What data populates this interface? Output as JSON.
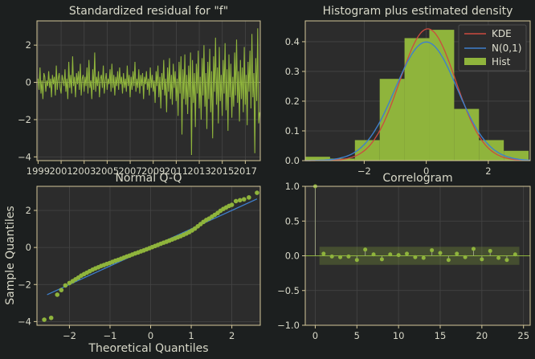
{
  "theme": {
    "background": "#1c1f1f",
    "panel": "#2c2c2c",
    "grid": "#454545",
    "spine": "#d4c79a",
    "text": "#d8d8c8",
    "green": "#8fb43c",
    "blue": "#3f7fcc",
    "red": "#cc4b3f"
  },
  "chart_data": [
    {
      "type": "line",
      "title": "Standardized residual for \"f\"",
      "xlim": [
        1998.9,
        2018.3
      ],
      "ylim": [
        -4.2,
        3.3
      ],
      "xticks": [
        "1999",
        "2001",
        "2003",
        "2005",
        "2007",
        "2009",
        "2011",
        "2013",
        "2015",
        "2017"
      ],
      "yticks": [
        "−4",
        "−2",
        "0",
        "2"
      ],
      "xtick_values": [
        1999,
        2001,
        2003,
        2005,
        2007,
        2009,
        2011,
        2013,
        2015,
        2017
      ],
      "ytick_values": [
        -4,
        -2,
        0,
        2
      ],
      "grid": true,
      "series": [
        {
          "x_start": 1999.0,
          "x_step": 0.0833,
          "values": [
            0.2,
            -0.4,
            0.8,
            -0.6,
            0.1,
            -0.9,
            0.5,
            0.3,
            -0.5,
            0.1,
            -0.2,
            0.6,
            -0.3,
            0.2,
            -0.8,
            0.4,
            -0.1,
            0.3,
            -0.7,
            0.9,
            -0.4,
            0.2,
            0.5,
            -0.3,
            -0.6,
            0.4,
            0.1,
            -0.2,
            0.7,
            -0.5,
            0.2,
            -0.9,
            1.1,
            -0.3,
            0.4,
            -0.6,
            1.4,
            -0.2,
            0.3,
            -0.8,
            0.5,
            -0.1,
            0.6,
            -0.4,
            1.0,
            -0.7,
            0.2,
            0.4,
            -0.5,
            0.3,
            -0.2,
            0.8,
            -0.6,
            1.2,
            -0.3,
            0.1,
            -0.9,
            0.7,
            -0.4,
            1.6,
            -0.5,
            0.3,
            -0.2,
            0.6,
            -0.8,
            0.2,
            0.4,
            -0.3,
            0.9,
            -0.6,
            0.1,
            0.5,
            -0.4,
            0.2,
            -0.1,
            0.7,
            -0.5,
            1.0,
            -0.3,
            0.4,
            -0.7,
            0.3,
            -0.2,
            0.6,
            -0.4,
            0.8,
            -0.1,
            0.3,
            -0.6,
            0.5,
            -0.3,
            0.2,
            -0.5,
            0.9,
            -0.2,
            0.4,
            -0.8,
            0.3,
            -0.4,
            0.6,
            -0.2,
            1.1,
            -0.5,
            0.2,
            -0.3,
            0.7,
            -0.6,
            0.4,
            -0.2,
            0.5,
            -0.9,
            0.3,
            -0.1,
            0.6,
            -0.4,
            0.2,
            -0.7,
            0.8,
            -0.3,
            0.4,
            -0.5,
            0.1,
            -1.1,
            0.6,
            -0.2,
            0.9,
            -0.8,
            0.3,
            -1.4,
            0.5,
            -0.4,
            1.2,
            -0.7,
            0.2,
            -1.6,
            0.8,
            -0.5,
            1.3,
            -0.9,
            0.4,
            -1.2,
            1.0,
            -0.3,
            0.6,
            -1.0,
            0.2,
            -1.8,
            1.1,
            -0.6,
            1.4,
            -2.8,
            0.7,
            -0.9,
            1.5,
            -1.2,
            0.4,
            -1.7,
            0.9,
            -0.8,
            1.6,
            -3.9,
            1.2,
            -1.1,
            0.5,
            -2.4,
            1.0,
            -0.6,
            1.7,
            -1.4,
            0.3,
            -2.0,
            1.3,
            -0.7,
            2.0,
            -1.3,
            0.5,
            -2.5,
            1.1,
            -0.9,
            1.8,
            -1.6,
            0.6,
            -3.0,
            1.4,
            -0.5,
            2.4,
            -1.2,
            0.8,
            -2.2,
            1.9,
            -1.0,
            0.4,
            -1.8,
            1.2,
            -0.6,
            2.1,
            -1.5,
            0.7,
            -2.6,
            1.5,
            -0.8,
            1.0,
            -1.9,
            0.3,
            -1.3,
            1.6,
            -0.7,
            2.3,
            -1.1,
            0.6,
            -2.1,
            1.2,
            -0.9,
            0.8,
            -1.6,
            1.9,
            -1.2,
            0.4,
            -2.3,
            1.1,
            -0.5,
            1.7,
            -1.4,
            2.6,
            -0.8,
            0.5,
            -3.8,
            1.3,
            -1.0,
            2.9,
            -2.2,
            -1.6
          ]
        }
      ]
    },
    {
      "type": "bar",
      "title": "Histogram plus estimated density",
      "xlim": [
        -3.9,
        3.35
      ],
      "ylim": [
        0,
        0.47
      ],
      "xticks": [
        "−2",
        "0",
        "2"
      ],
      "xtick_values": [
        -2,
        0,
        2
      ],
      "yticks": [
        "0.0",
        "0.1",
        "0.2",
        "0.3",
        "0.4"
      ],
      "ytick_values": [
        0,
        0.1,
        0.2,
        0.3,
        0.4
      ],
      "grid": true,
      "legend_position": "top-right",
      "legend": [
        "KDE",
        "N(0,1)",
        "Hist"
      ],
      "histogram": {
        "bin_edges": [
          -3.9,
          -3.1,
          -2.3,
          -1.5,
          -0.7,
          0.1,
          0.9,
          1.7,
          2.5,
          3.3
        ],
        "heights": [
          0.013,
          0.007,
          0.069,
          0.275,
          0.412,
          0.44,
          0.174,
          0.069,
          0.033
        ]
      },
      "series": [
        {
          "name": "KDE",
          "kind": "kde",
          "mean": 0.05,
          "sd": 0.9
        },
        {
          "name": "N(0,1)",
          "kind": "normal",
          "mean": 0,
          "sd": 1
        }
      ]
    },
    {
      "type": "scatter",
      "title": "Normal Q-Q",
      "xlabel": "Theoretical Quantiles",
      "ylabel": "Sample Quantiles",
      "xlim": [
        -2.8,
        2.7
      ],
      "ylim": [
        -4.2,
        3.3
      ],
      "xticks": [
        "−2",
        "−1",
        "0",
        "1",
        "2"
      ],
      "xtick_values": [
        -2,
        -1,
        0,
        1,
        2
      ],
      "yticks": [
        "−4",
        "−2",
        "0",
        "2"
      ],
      "ytick_values": [
        -4,
        -2,
        0,
        2
      ],
      "grid": true,
      "reference_line": {
        "x": [
          -2.55,
          2.62
        ],
        "y": [
          -2.55,
          2.62
        ]
      },
      "points": {
        "x": [
          -2.62,
          -2.45,
          -2.3,
          -2.2,
          -2.1,
          -2.0,
          -1.92,
          -1.85,
          -1.78,
          -1.71,
          -1.64,
          -1.57,
          -1.5,
          -1.43,
          -1.36,
          -1.29,
          -1.22,
          -1.15,
          -1.08,
          -1.01,
          -0.94,
          -0.87,
          -0.8,
          -0.73,
          -0.66,
          -0.59,
          -0.52,
          -0.45,
          -0.38,
          -0.31,
          -0.24,
          -0.17,
          -0.1,
          -0.03,
          0.04,
          0.11,
          0.18,
          0.25,
          0.32,
          0.39,
          0.46,
          0.53,
          0.6,
          0.67,
          0.74,
          0.81,
          0.88,
          0.95,
          1.02,
          1.09,
          1.16,
          1.23,
          1.3,
          1.37,
          1.44,
          1.51,
          1.58,
          1.65,
          1.72,
          1.79,
          1.86,
          1.93,
          2.0,
          2.1,
          2.2,
          2.3,
          2.42,
          2.62
        ],
        "y": [
          -3.9,
          -3.8,
          -2.55,
          -2.3,
          -2.05,
          -1.92,
          -1.82,
          -1.72,
          -1.63,
          -1.52,
          -1.44,
          -1.36,
          -1.28,
          -1.2,
          -1.13,
          -1.07,
          -1.0,
          -0.95,
          -0.89,
          -0.84,
          -0.78,
          -0.72,
          -0.67,
          -0.61,
          -0.55,
          -0.49,
          -0.44,
          -0.38,
          -0.32,
          -0.27,
          -0.21,
          -0.16,
          -0.1,
          -0.04,
          0.02,
          0.08,
          0.14,
          0.2,
          0.26,
          0.31,
          0.37,
          0.43,
          0.49,
          0.55,
          0.61,
          0.68,
          0.75,
          0.83,
          0.92,
          1.02,
          1.14,
          1.26,
          1.38,
          1.48,
          1.56,
          1.66,
          1.76,
          1.86,
          1.98,
          2.08,
          2.16,
          2.24,
          2.3,
          2.5,
          2.55,
          2.6,
          2.7,
          2.95
        ]
      }
    },
    {
      "type": "bar",
      "title": "Correlogram",
      "xlim": [
        -1.2,
        25.8
      ],
      "ylim": [
        -1.0,
        1.0
      ],
      "xticks": [
        "0",
        "5",
        "10",
        "15",
        "20",
        "25"
      ],
      "xtick_values": [
        0,
        5,
        10,
        15,
        20,
        25
      ],
      "yticks": [
        "−1.0",
        "−0.5",
        "0.0",
        "0.5",
        "1.0"
      ],
      "ytick_values": [
        -1.0,
        -0.5,
        0.0,
        0.5,
        1.0
      ],
      "grid": true,
      "confidence_band": [
        -0.13,
        0.13
      ],
      "lags": [
        0,
        1,
        2,
        3,
        4,
        5,
        6,
        7,
        8,
        9,
        10,
        11,
        12,
        13,
        14,
        15,
        16,
        17,
        18,
        19,
        20,
        21,
        22,
        23,
        24
      ],
      "values": [
        1.0,
        0.03,
        -0.01,
        -0.02,
        -0.01,
        -0.06,
        0.09,
        0.02,
        -0.05,
        0.02,
        0.01,
        0.03,
        -0.02,
        -0.03,
        0.08,
        0.04,
        -0.06,
        0.03,
        -0.02,
        0.1,
        -0.05,
        0.07,
        -0.03,
        -0.06,
        0.02
      ]
    }
  ]
}
